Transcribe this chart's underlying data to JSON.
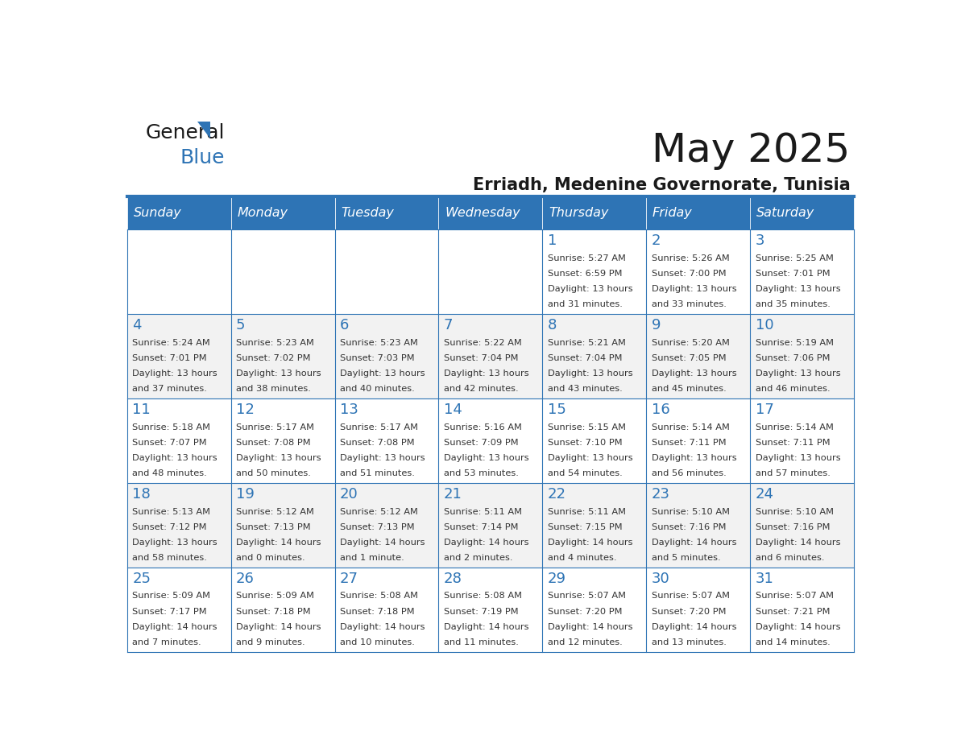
{
  "title": "May 2025",
  "subtitle": "Erriadh, Medenine Governorate, Tunisia",
  "days_of_week": [
    "Sunday",
    "Monday",
    "Tuesday",
    "Wednesday",
    "Thursday",
    "Friday",
    "Saturday"
  ],
  "header_bg": "#2E74B5",
  "header_text_color": "#FFFFFF",
  "odd_row_bg": "#FFFFFF",
  "even_row_bg": "#F2F2F2",
  "cell_border_color": "#2E74B5",
  "day_number_color": "#2E74B5",
  "text_color": "#333333",
  "calendar_data": [
    [
      {
        "day": null,
        "sunrise": null,
        "sunset": null,
        "daylight": null
      },
      {
        "day": null,
        "sunrise": null,
        "sunset": null,
        "daylight": null
      },
      {
        "day": null,
        "sunrise": null,
        "sunset": null,
        "daylight": null
      },
      {
        "day": null,
        "sunrise": null,
        "sunset": null,
        "daylight": null
      },
      {
        "day": 1,
        "sunrise": "5:27 AM",
        "sunset": "6:59 PM",
        "daylight": "13 hours\nand 31 minutes."
      },
      {
        "day": 2,
        "sunrise": "5:26 AM",
        "sunset": "7:00 PM",
        "daylight": "13 hours\nand 33 minutes."
      },
      {
        "day": 3,
        "sunrise": "5:25 AM",
        "sunset": "7:01 PM",
        "daylight": "13 hours\nand 35 minutes."
      }
    ],
    [
      {
        "day": 4,
        "sunrise": "5:24 AM",
        "sunset": "7:01 PM",
        "daylight": "13 hours\nand 37 minutes."
      },
      {
        "day": 5,
        "sunrise": "5:23 AM",
        "sunset": "7:02 PM",
        "daylight": "13 hours\nand 38 minutes."
      },
      {
        "day": 6,
        "sunrise": "5:23 AM",
        "sunset": "7:03 PM",
        "daylight": "13 hours\nand 40 minutes."
      },
      {
        "day": 7,
        "sunrise": "5:22 AM",
        "sunset": "7:04 PM",
        "daylight": "13 hours\nand 42 minutes."
      },
      {
        "day": 8,
        "sunrise": "5:21 AM",
        "sunset": "7:04 PM",
        "daylight": "13 hours\nand 43 minutes."
      },
      {
        "day": 9,
        "sunrise": "5:20 AM",
        "sunset": "7:05 PM",
        "daylight": "13 hours\nand 45 minutes."
      },
      {
        "day": 10,
        "sunrise": "5:19 AM",
        "sunset": "7:06 PM",
        "daylight": "13 hours\nand 46 minutes."
      }
    ],
    [
      {
        "day": 11,
        "sunrise": "5:18 AM",
        "sunset": "7:07 PM",
        "daylight": "13 hours\nand 48 minutes."
      },
      {
        "day": 12,
        "sunrise": "5:17 AM",
        "sunset": "7:08 PM",
        "daylight": "13 hours\nand 50 minutes."
      },
      {
        "day": 13,
        "sunrise": "5:17 AM",
        "sunset": "7:08 PM",
        "daylight": "13 hours\nand 51 minutes."
      },
      {
        "day": 14,
        "sunrise": "5:16 AM",
        "sunset": "7:09 PM",
        "daylight": "13 hours\nand 53 minutes."
      },
      {
        "day": 15,
        "sunrise": "5:15 AM",
        "sunset": "7:10 PM",
        "daylight": "13 hours\nand 54 minutes."
      },
      {
        "day": 16,
        "sunrise": "5:14 AM",
        "sunset": "7:11 PM",
        "daylight": "13 hours\nand 56 minutes."
      },
      {
        "day": 17,
        "sunrise": "5:14 AM",
        "sunset": "7:11 PM",
        "daylight": "13 hours\nand 57 minutes."
      }
    ],
    [
      {
        "day": 18,
        "sunrise": "5:13 AM",
        "sunset": "7:12 PM",
        "daylight": "13 hours\nand 58 minutes."
      },
      {
        "day": 19,
        "sunrise": "5:12 AM",
        "sunset": "7:13 PM",
        "daylight": "14 hours\nand 0 minutes."
      },
      {
        "day": 20,
        "sunrise": "5:12 AM",
        "sunset": "7:13 PM",
        "daylight": "14 hours\nand 1 minute."
      },
      {
        "day": 21,
        "sunrise": "5:11 AM",
        "sunset": "7:14 PM",
        "daylight": "14 hours\nand 2 minutes."
      },
      {
        "day": 22,
        "sunrise": "5:11 AM",
        "sunset": "7:15 PM",
        "daylight": "14 hours\nand 4 minutes."
      },
      {
        "day": 23,
        "sunrise": "5:10 AM",
        "sunset": "7:16 PM",
        "daylight": "14 hours\nand 5 minutes."
      },
      {
        "day": 24,
        "sunrise": "5:10 AM",
        "sunset": "7:16 PM",
        "daylight": "14 hours\nand 6 minutes."
      }
    ],
    [
      {
        "day": 25,
        "sunrise": "5:09 AM",
        "sunset": "7:17 PM",
        "daylight": "14 hours\nand 7 minutes."
      },
      {
        "day": 26,
        "sunrise": "5:09 AM",
        "sunset": "7:18 PM",
        "daylight": "14 hours\nand 9 minutes."
      },
      {
        "day": 27,
        "sunrise": "5:08 AM",
        "sunset": "7:18 PM",
        "daylight": "14 hours\nand 10 minutes."
      },
      {
        "day": 28,
        "sunrise": "5:08 AM",
        "sunset": "7:19 PM",
        "daylight": "14 hours\nand 11 minutes."
      },
      {
        "day": 29,
        "sunrise": "5:07 AM",
        "sunset": "7:20 PM",
        "daylight": "14 hours\nand 12 minutes."
      },
      {
        "day": 30,
        "sunrise": "5:07 AM",
        "sunset": "7:20 PM",
        "daylight": "14 hours\nand 13 minutes."
      },
      {
        "day": 31,
        "sunrise": "5:07 AM",
        "sunset": "7:21 PM",
        "daylight": "14 hours\nand 14 minutes."
      }
    ]
  ]
}
